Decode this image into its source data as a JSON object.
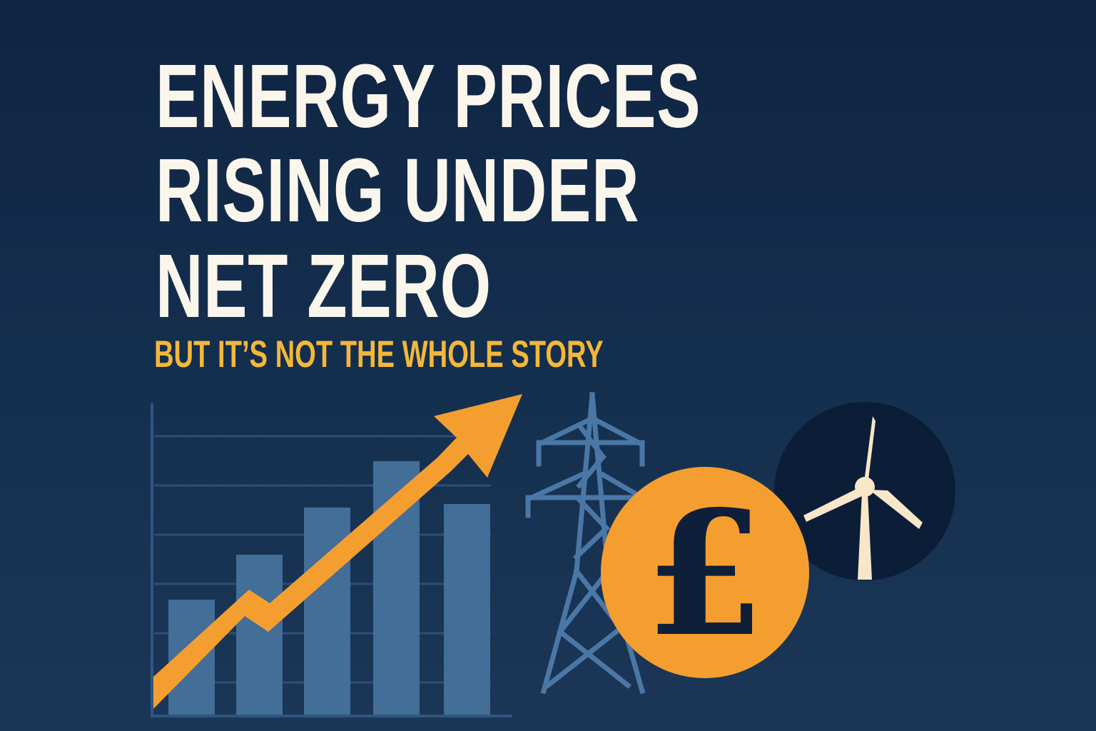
{
  "headline": {
    "lines": [
      "ENERGY PRICES",
      "RISING UNDER",
      "NET ZERO"
    ],
    "subtitle": "BUT IT’S NOT THE WHOLE STORY"
  },
  "illustration": {
    "icons": [
      "bar-chart-icon",
      "rising-arrow-icon",
      "electricity-pylon-icon",
      "pound-coin-icon",
      "wind-turbine-icon"
    ],
    "pound_symbol": "£"
  },
  "colors": {
    "background": "#132a48",
    "title": "#fbf6ec",
    "subtitle": "#f4b73a",
    "bars": "#426e98",
    "arrow": "#f59e30",
    "coin": "#f59e30",
    "turbine": "#f7e6c8",
    "turbine_circle": "#0b1d37"
  }
}
